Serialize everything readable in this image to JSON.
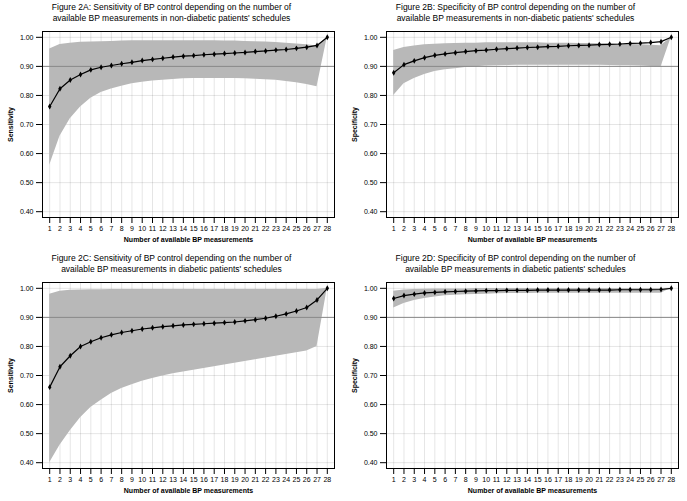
{
  "chart_data": [
    {
      "type": "line",
      "title": "Figure 2A: Sensitivity of BP control depending on the number of\navailable BP measurements in non-diabetic patients' schedules",
      "xlabel": "Number of available BP measurements",
      "ylabel": "Sensitivity",
      "x": [
        1,
        2,
        3,
        4,
        5,
        6,
        7,
        8,
        9,
        10,
        11,
        12,
        13,
        14,
        15,
        16,
        17,
        18,
        19,
        20,
        21,
        22,
        23,
        24,
        25,
        26,
        27,
        28
      ],
      "values": [
        0.762,
        0.823,
        0.853,
        0.872,
        0.888,
        0.897,
        0.903,
        0.909,
        0.914,
        0.92,
        0.924,
        0.928,
        0.932,
        0.935,
        0.937,
        0.94,
        0.942,
        0.944,
        0.946,
        0.948,
        0.951,
        0.953,
        0.956,
        0.958,
        0.962,
        0.966,
        0.972,
        1.0
      ],
      "upper": [
        0.96,
        0.975,
        0.98,
        0.983,
        0.984,
        0.985,
        0.986,
        0.987,
        0.988,
        0.988,
        0.988,
        0.988,
        0.988,
        0.988,
        0.988,
        0.988,
        0.988,
        0.987,
        0.987,
        0.986,
        0.985,
        0.984,
        0.982,
        0.98,
        0.977,
        0.974,
        0.97,
        1.0
      ],
      "lower": [
        0.56,
        0.66,
        0.72,
        0.76,
        0.79,
        0.81,
        0.822,
        0.832,
        0.84,
        0.845,
        0.85,
        0.852,
        0.855,
        0.857,
        0.858,
        0.858,
        0.858,
        0.858,
        0.858,
        0.857,
        0.856,
        0.854,
        0.852,
        0.848,
        0.844,
        0.838,
        0.83,
        1.0
      ],
      "reference_line": 0.9,
      "color": "#000000",
      "marker": "diamond",
      "xlim": [
        0.3,
        28.7
      ],
      "xticks": [
        1,
        2,
        3,
        4,
        5,
        6,
        7,
        8,
        9,
        10,
        11,
        12,
        13,
        14,
        15,
        16,
        17,
        18,
        19,
        20,
        21,
        22,
        23,
        24,
        25,
        26,
        27,
        28
      ],
      "ylim": [
        0.38,
        1.02
      ],
      "yticks": [
        {
          "value": 0.4,
          "label": "0.40"
        },
        {
          "value": 0.5,
          "label": "0.50"
        },
        {
          "value": 0.6,
          "label": "0.60"
        },
        {
          "value": 0.7,
          "label": "0.70"
        },
        {
          "value": 0.8,
          "label": "0.80"
        },
        {
          "value": 0.9,
          "label": "0.90"
        },
        {
          "value": 1.0,
          "label": "1.00"
        }
      ],
      "grid": true
    },
    {
      "type": "line",
      "title": "Figure 2B: Specificity of BP control depending on the number of\navailable BP measurements in non-diabetic patients' schedules",
      "xlabel": "Number of available BP measurements",
      "ylabel": "Specificity",
      "x": [
        1,
        2,
        3,
        4,
        5,
        6,
        7,
        8,
        9,
        10,
        11,
        12,
        13,
        14,
        15,
        16,
        17,
        18,
        19,
        20,
        21,
        22,
        23,
        24,
        25,
        26,
        27,
        28
      ],
      "values": [
        0.878,
        0.906,
        0.919,
        0.93,
        0.938,
        0.943,
        0.947,
        0.951,
        0.954,
        0.956,
        0.959,
        0.961,
        0.963,
        0.965,
        0.966,
        0.968,
        0.969,
        0.971,
        0.972,
        0.973,
        0.975,
        0.976,
        0.977,
        0.979,
        0.98,
        0.982,
        0.985,
        1.0
      ],
      "upper": [
        0.955,
        0.965,
        0.97,
        0.974,
        0.976,
        0.978,
        0.979,
        0.98,
        0.98,
        0.981,
        0.981,
        0.981,
        0.981,
        0.981,
        0.981,
        0.98,
        0.98,
        0.98,
        0.979,
        0.979,
        0.978,
        0.977,
        0.976,
        0.975,
        0.974,
        0.973,
        0.971,
        1.0
      ],
      "lower": [
        0.8,
        0.84,
        0.858,
        0.872,
        0.882,
        0.888,
        0.892,
        0.896,
        0.899,
        0.901,
        0.902,
        0.903,
        0.904,
        0.904,
        0.904,
        0.904,
        0.904,
        0.904,
        0.904,
        0.904,
        0.904,
        0.903,
        0.902,
        0.902,
        0.901,
        0.9,
        0.898,
        1.0
      ],
      "reference_line": 0.9,
      "color": "#000000",
      "marker": "diamond",
      "xlim": [
        0.3,
        28.7
      ],
      "xticks": [
        1,
        2,
        3,
        4,
        5,
        6,
        7,
        8,
        9,
        10,
        11,
        12,
        13,
        14,
        15,
        16,
        17,
        18,
        19,
        20,
        21,
        22,
        23,
        24,
        25,
        26,
        27,
        28
      ],
      "ylim": [
        0.38,
        1.02
      ],
      "yticks": [
        {
          "value": 0.4,
          "label": "0.40"
        },
        {
          "value": 0.5,
          "label": "0.50"
        },
        {
          "value": 0.6,
          "label": "0.60"
        },
        {
          "value": 0.7,
          "label": "0.70"
        },
        {
          "value": 0.8,
          "label": "0.80"
        },
        {
          "value": 0.9,
          "label": "0.90"
        },
        {
          "value": 1.0,
          "label": "1.00"
        }
      ],
      "grid": true
    },
    {
      "type": "line",
      "title": "Figure 2C: Sensitivity of BP control depending on the number of\navailable BP measurements in diabetic patients' schedules",
      "xlabel": "Number of available BP measurements",
      "ylabel": "Sensitivity",
      "x": [
        1,
        2,
        3,
        4,
        5,
        6,
        7,
        8,
        9,
        10,
        11,
        12,
        13,
        14,
        15,
        16,
        17,
        18,
        19,
        20,
        21,
        22,
        23,
        24,
        25,
        26,
        27,
        28
      ],
      "values": [
        0.66,
        0.73,
        0.768,
        0.8,
        0.816,
        0.83,
        0.84,
        0.848,
        0.854,
        0.86,
        0.864,
        0.868,
        0.871,
        0.874,
        0.876,
        0.878,
        0.88,
        0.882,
        0.884,
        0.888,
        0.892,
        0.897,
        0.904,
        0.912,
        0.922,
        0.934,
        0.96,
        1.0
      ],
      "upper": [
        0.98,
        0.99,
        0.993,
        0.994,
        0.995,
        0.995,
        0.996,
        0.996,
        0.996,
        0.996,
        0.996,
        0.996,
        0.996,
        0.996,
        0.996,
        0.996,
        0.996,
        0.996,
        0.996,
        0.996,
        0.996,
        0.996,
        0.996,
        0.996,
        0.996,
        0.996,
        0.996,
        1.0
      ],
      "lower": [
        0.4,
        0.46,
        0.51,
        0.555,
        0.59,
        0.615,
        0.638,
        0.655,
        0.668,
        0.68,
        0.69,
        0.698,
        0.706,
        0.712,
        0.718,
        0.724,
        0.73,
        0.736,
        0.742,
        0.748,
        0.754,
        0.76,
        0.766,
        0.772,
        0.778,
        0.784,
        0.8,
        1.0
      ],
      "reference_line": 0.9,
      "color": "#000000",
      "marker": "diamond",
      "xlim": [
        0.3,
        28.7
      ],
      "xticks": [
        1,
        2,
        3,
        4,
        5,
        6,
        7,
        8,
        9,
        10,
        11,
        12,
        13,
        14,
        15,
        16,
        17,
        18,
        19,
        20,
        21,
        22,
        23,
        24,
        25,
        26,
        27,
        28
      ],
      "ylim": [
        0.38,
        1.02
      ],
      "yticks": [
        {
          "value": 0.4,
          "label": "0.40"
        },
        {
          "value": 0.5,
          "label": "0.50"
        },
        {
          "value": 0.6,
          "label": "0.60"
        },
        {
          "value": 0.7,
          "label": "0.70"
        },
        {
          "value": 0.8,
          "label": "0.80"
        },
        {
          "value": 0.9,
          "label": "0.90"
        },
        {
          "value": 1.0,
          "label": "1.00"
        }
      ],
      "grid": true
    },
    {
      "type": "line",
      "title": "Figure 2D: Specificity of BP control depending on the number of\navailable BP measurements in diabetic patients' schedules",
      "xlabel": "Number of available BP measurements",
      "ylabel": "Specificity",
      "x": [
        1,
        2,
        3,
        4,
        5,
        6,
        7,
        8,
        9,
        10,
        11,
        12,
        13,
        14,
        15,
        16,
        17,
        18,
        19,
        20,
        21,
        22,
        23,
        24,
        25,
        26,
        27,
        28
      ],
      "values": [
        0.965,
        0.975,
        0.98,
        0.984,
        0.986,
        0.988,
        0.989,
        0.99,
        0.991,
        0.992,
        0.992,
        0.993,
        0.993,
        0.993,
        0.994,
        0.994,
        0.994,
        0.994,
        0.994,
        0.994,
        0.994,
        0.994,
        0.995,
        0.995,
        0.995,
        0.995,
        0.996,
        1.0
      ],
      "upper": [
        0.99,
        0.994,
        0.996,
        0.997,
        0.998,
        0.998,
        0.998,
        0.998,
        0.999,
        0.999,
        0.999,
        0.999,
        0.999,
        0.999,
        0.999,
        0.999,
        0.999,
        0.999,
        0.999,
        0.999,
        0.999,
        0.999,
        0.999,
        0.999,
        0.999,
        0.999,
        0.999,
        1.0
      ],
      "lower": [
        0.932,
        0.948,
        0.958,
        0.965,
        0.97,
        0.974,
        0.976,
        0.978,
        0.979,
        0.98,
        0.981,
        0.982,
        0.982,
        0.982,
        0.983,
        0.983,
        0.983,
        0.983,
        0.983,
        0.983,
        0.983,
        0.983,
        0.983,
        0.983,
        0.983,
        0.983,
        0.983,
        1.0
      ],
      "reference_line": 0.9,
      "color": "#000000",
      "marker": "diamond",
      "xlim": [
        0.3,
        28.7
      ],
      "xticks": [
        1,
        2,
        3,
        4,
        5,
        6,
        7,
        8,
        9,
        10,
        11,
        12,
        13,
        14,
        15,
        16,
        17,
        18,
        19,
        20,
        21,
        22,
        23,
        24,
        25,
        26,
        27,
        28
      ],
      "ylim": [
        0.38,
        1.02
      ],
      "yticks": [
        {
          "value": 0.4,
          "label": "0.40"
        },
        {
          "value": 0.5,
          "label": "0.50"
        },
        {
          "value": 0.6,
          "label": "0.60"
        },
        {
          "value": 0.7,
          "label": "0.70"
        },
        {
          "value": 0.8,
          "label": "0.80"
        },
        {
          "value": 0.9,
          "label": "0.90"
        },
        {
          "value": 1.0,
          "label": "1.00"
        }
      ],
      "grid": true
    }
  ]
}
